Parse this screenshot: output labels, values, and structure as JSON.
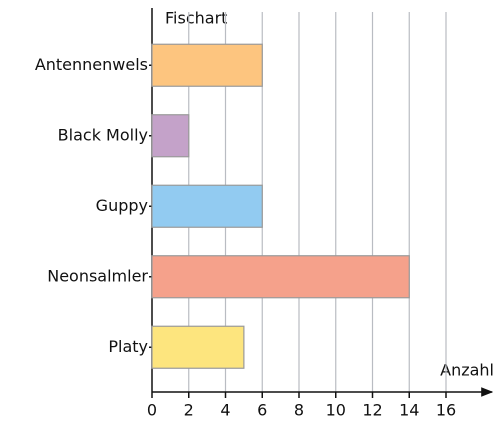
{
  "chart_data": {
    "type": "bar",
    "orientation": "horizontal",
    "y_label": "Fischart",
    "x_label": "Anzahl",
    "categories": [
      "Antennenwels",
      "Black Molly",
      "Guppy",
      "Neonsalmler",
      "Platy"
    ],
    "values": [
      6,
      2,
      6,
      14,
      5
    ],
    "colors": [
      "#fdc57f",
      "#c4a2c9",
      "#92cbf1",
      "#f5a18b",
      "#fde57e"
    ],
    "xlim": [
      0,
      16
    ],
    "xticks": [
      0,
      2,
      4,
      6,
      8,
      10,
      12,
      14,
      16
    ],
    "grid": true
  }
}
